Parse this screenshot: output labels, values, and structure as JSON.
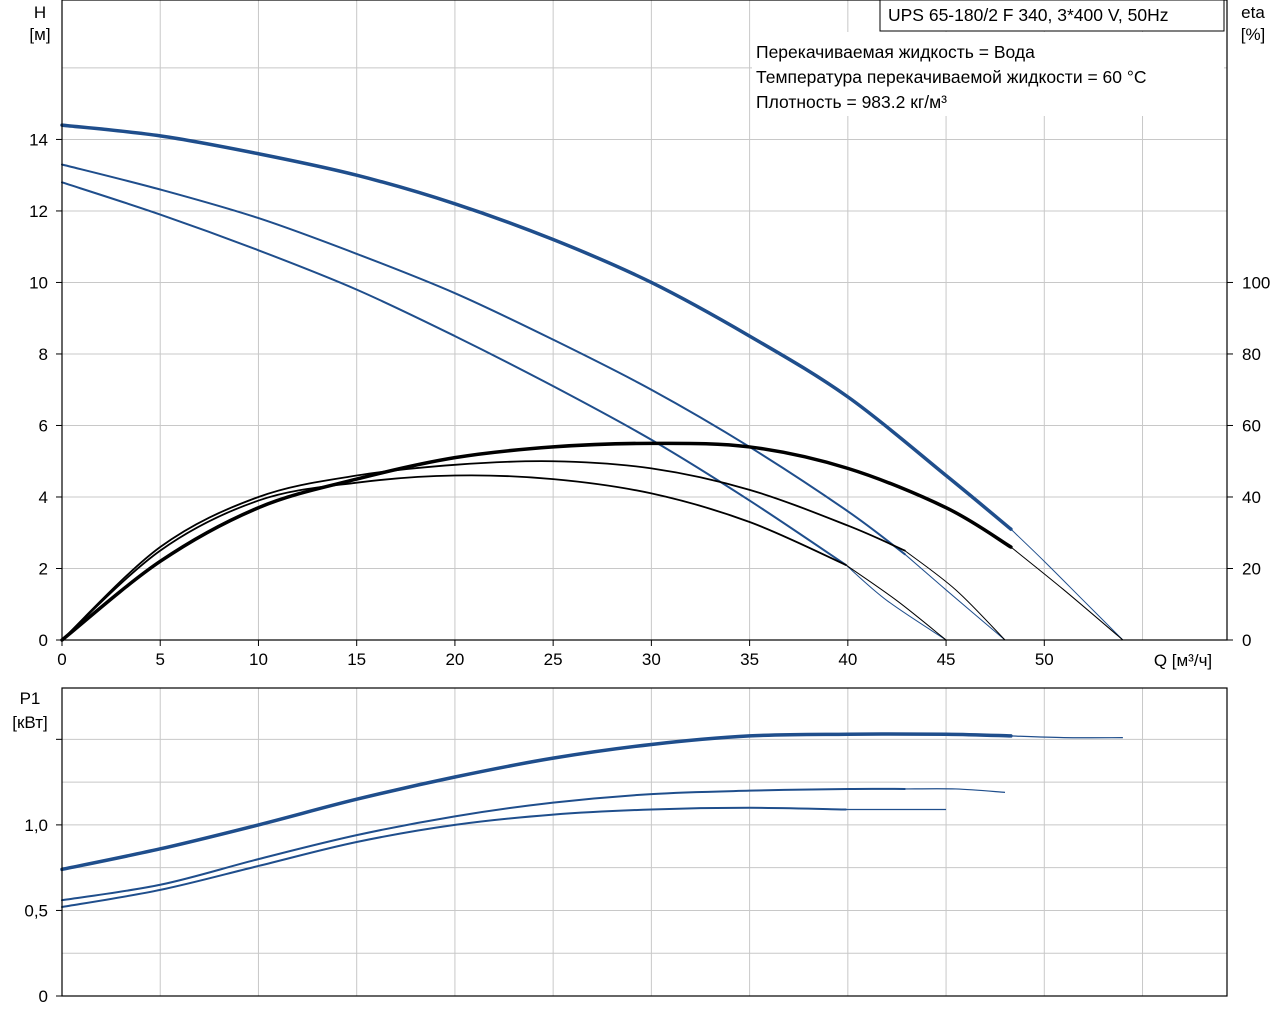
{
  "title_box": "UPS 65-180/2 F 340, 3*400 V, 50Hz",
  "info_lines": [
    "Перекачиваемая жидкость = Вода",
    "Температура перекачиваемой жидкости = 60 °C",
    "Плотность = 983.2 кг/м³"
  ],
  "colors": {
    "head_curve": "#1f4e8c",
    "eff_curve": "#000000",
    "power_curve": "#1f4e8c",
    "grid": "#c8c8c8"
  },
  "chart_data": [
    {
      "type": "line",
      "name": "head-efficiency",
      "xlabel": "Q [м³/ч]",
      "ylabel_left": "H",
      "ylabel_left_unit": "[м]",
      "ylabel_right": "eta",
      "ylabel_right_unit": "[%]",
      "xlim": [
        0,
        59.3
      ],
      "ylim_left": [
        0,
        17.9
      ],
      "ylim_right": [
        0,
        179
      ],
      "x_ticks": [
        "0",
        "5",
        "10",
        "15",
        "20",
        "25",
        "30",
        "35",
        "40",
        "45",
        "50"
      ],
      "y_ticks_left": [
        "0",
        "2",
        "4",
        "6",
        "8",
        "10",
        "12",
        "14"
      ],
      "y_ticks_right": [
        "0",
        "20",
        "40",
        "60",
        "80",
        "100"
      ],
      "grid": true,
      "head_series": [
        {
          "x": [
            0,
            5,
            10,
            15,
            20,
            25,
            30,
            35,
            40,
            45,
            48.3
          ],
          "y": [
            14.4,
            14.1,
            13.6,
            13.0,
            12.2,
            11.2,
            10.0,
            8.5,
            6.8,
            4.6,
            3.1
          ],
          "width": 3.5
        },
        {
          "x": [
            0,
            5,
            10,
            15,
            20,
            25,
            30,
            35,
            40,
            42.9
          ],
          "y": [
            13.3,
            12.6,
            11.8,
            10.8,
            9.7,
            8.4,
            7.0,
            5.4,
            3.6,
            2.4
          ],
          "width": 2
        },
        {
          "x": [
            0,
            5,
            10,
            15,
            20,
            25,
            30,
            35,
            39.9
          ],
          "y": [
            12.8,
            11.9,
            10.9,
            9.8,
            8.5,
            7.1,
            5.6,
            3.9,
            2.1
          ],
          "width": 2
        }
      ],
      "head_extensions": [
        {
          "x": [
            48.3,
            50,
            52,
            54
          ],
          "y": [
            3.1,
            2.2,
            1.1,
            0
          ]
        },
        {
          "x": [
            42.9,
            45,
            48
          ],
          "y": [
            2.4,
            1.4,
            0
          ]
        },
        {
          "x": [
            39.9,
            42,
            45
          ],
          "y": [
            2.1,
            1.1,
            0
          ]
        }
      ],
      "eff_series": [
        {
          "x": [
            0,
            5,
            10,
            15,
            20,
            25,
            30,
            35,
            40,
            45,
            48.3
          ],
          "y": [
            0,
            22,
            37,
            45,
            51,
            54,
            55,
            54,
            48,
            37,
            26
          ],
          "width": 3.5
        },
        {
          "x": [
            0,
            5,
            10,
            15,
            20,
            25,
            30,
            35,
            40,
            42.9
          ],
          "y": [
            0,
            26,
            40,
            46,
            49,
            50,
            48,
            42,
            32,
            25
          ],
          "width": 1.8
        },
        {
          "x": [
            0,
            5,
            10,
            15,
            20,
            25,
            30,
            35,
            39.9
          ],
          "y": [
            0,
            25,
            39,
            44,
            46,
            45,
            41,
            33,
            21
          ],
          "width": 1.8
        }
      ],
      "eff_extensions": [
        {
          "x": [
            48.3,
            51,
            54
          ],
          "y": [
            26,
            14,
            0
          ]
        },
        {
          "x": [
            42.9,
            45.5,
            48
          ],
          "y": [
            25,
            14,
            0
          ]
        },
        {
          "x": [
            39.9,
            42.5,
            45
          ],
          "y": [
            21,
            11,
            0
          ]
        }
      ]
    },
    {
      "type": "line",
      "name": "power",
      "ylabel": "P1",
      "ylabel_unit": "[кВт]",
      "xlim": [
        0,
        59.3
      ],
      "ylim": [
        0,
        1.8
      ],
      "y_ticks": [
        "0",
        "0,5",
        "1,0"
      ],
      "y_tick_values": [
        0,
        0.5,
        1.0
      ],
      "y_minor_ticks": [
        1.5
      ],
      "grid": true,
      "series": [
        {
          "x": [
            0,
            5,
            10,
            15,
            20,
            25,
            30,
            35,
            40,
            45,
            48.3
          ],
          "y": [
            0.74,
            0.86,
            1.0,
            1.15,
            1.28,
            1.39,
            1.47,
            1.52,
            1.53,
            1.53,
            1.52
          ],
          "width": 3.5
        },
        {
          "x": [
            0,
            5,
            10,
            15,
            20,
            25,
            30,
            35,
            40,
            42.9
          ],
          "y": [
            0.56,
            0.65,
            0.8,
            0.94,
            1.05,
            1.13,
            1.18,
            1.2,
            1.21,
            1.21
          ],
          "width": 2
        },
        {
          "x": [
            0,
            5,
            10,
            15,
            20,
            25,
            30,
            35,
            39.9
          ],
          "y": [
            0.52,
            0.62,
            0.76,
            0.9,
            1.0,
            1.06,
            1.09,
            1.1,
            1.09
          ],
          "width": 2
        }
      ],
      "extensions": [
        {
          "x": [
            48.3,
            51,
            54
          ],
          "y": [
            1.52,
            1.51,
            1.51
          ]
        },
        {
          "x": [
            42.9,
            45.5,
            48
          ],
          "y": [
            1.21,
            1.21,
            1.19
          ]
        },
        {
          "x": [
            39.9,
            42.5,
            45
          ],
          "y": [
            1.09,
            1.09,
            1.09
          ]
        }
      ]
    }
  ]
}
